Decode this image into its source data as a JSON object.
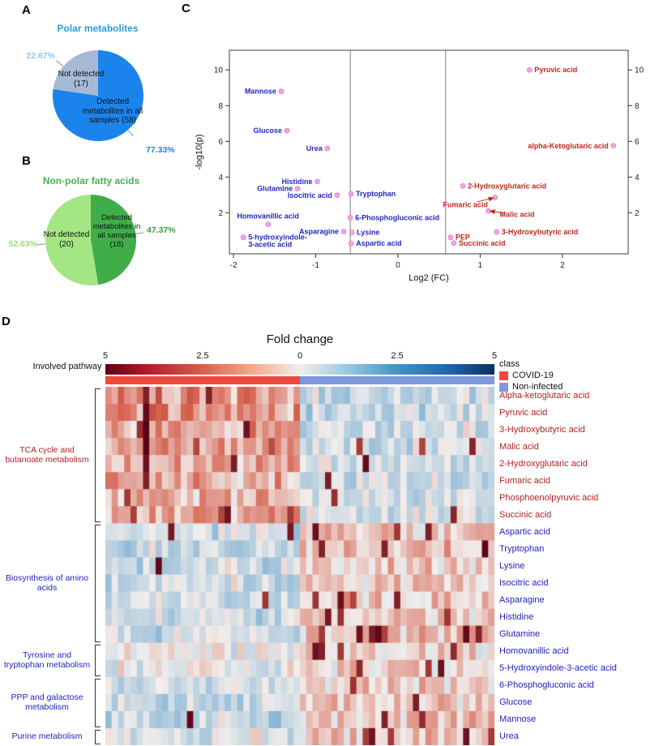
{
  "chart_data": [
    {
      "type": "pie",
      "panel_label": "A",
      "title": "Polar metabolites",
      "title_color": "#2d9be0",
      "slices": [
        {
          "label": "Detected metabolites in all samples (58)",
          "value": 58,
          "pct": 77.33,
          "pct_label": "77.33%",
          "color": "#1b84ec",
          "pct_color": "#1b84ec"
        },
        {
          "label": "Not detected (17)",
          "value": 17,
          "pct": 22.67,
          "pct_label": "22.67%",
          "color": "#a6b9d8",
          "pct_color": "#93c4ea"
        }
      ]
    },
    {
      "type": "pie",
      "panel_label": "B",
      "title": "Non-polar fatty acids",
      "title_color": "#4caf50",
      "slices": [
        {
          "label": "Detected metabolites in all samples (18)",
          "value": 18,
          "pct": 47.37,
          "pct_label": "47.37%",
          "color": "#3fae49",
          "pct_color": "#35a13f"
        },
        {
          "label": "Not detected (20)",
          "value": 20,
          "pct": 52.63,
          "pct_label": "52.63%",
          "color": "#a4e683",
          "pct_color": "#9adf74"
        }
      ]
    },
    {
      "type": "scatter",
      "panel_label": "C",
      "xlabel": "Log2 (FC)",
      "ylabel": "-log10(p)",
      "xlim": [
        -2.05,
        2.8
      ],
      "ylim": [
        -0.3,
        11.1
      ],
      "x_ticks": [
        -2,
        -1,
        0,
        1,
        2
      ],
      "y_ticks": [
        2,
        4,
        6,
        8,
        10
      ],
      "vlines": [
        -0.58,
        0.58
      ],
      "point_color": "#f2a6e0",
      "label_colors": {
        "up": "#c0281c",
        "down": "#2525c4"
      },
      "points": [
        {
          "name": "Pyruvic acid",
          "x": 1.6,
          "y": 10.0,
          "dir": "up",
          "side": "right"
        },
        {
          "name": "Mannose",
          "x": -1.42,
          "y": 8.8,
          "dir": "down",
          "side": "left"
        },
        {
          "name": "Glucose",
          "x": -1.35,
          "y": 6.6,
          "dir": "down",
          "side": "left"
        },
        {
          "name": "Urea",
          "x": -0.86,
          "y": 5.6,
          "dir": "down",
          "side": "left"
        },
        {
          "name": "alpha-Ketoglutaric acid",
          "x": 2.62,
          "y": 5.75,
          "dir": "up",
          "side": "left"
        },
        {
          "name": "Histidine",
          "x": -0.98,
          "y": 3.75,
          "dir": "down",
          "side": "left"
        },
        {
          "name": "Glutamine",
          "x": -1.22,
          "y": 3.35,
          "dir": "down",
          "side": "left"
        },
        {
          "name": "Isocitric acid",
          "x": -0.74,
          "y": 2.98,
          "dir": "down",
          "side": "left"
        },
        {
          "name": "Tryptophan",
          "x": -0.57,
          "y": 3.05,
          "dir": "down",
          "side": "right"
        },
        {
          "name": "2-Hydroxyglutaric acid",
          "x": 0.79,
          "y": 3.5,
          "dir": "up",
          "side": "right"
        },
        {
          "name": "Fumaric acid",
          "x": 1.18,
          "y": 2.85,
          "dir": "up",
          "side": "label",
          "label_at": {
            "x": 0.82,
            "y": 2.45
          }
        },
        {
          "name": "Malic acid",
          "x": 1.1,
          "y": 2.1,
          "dir": "up",
          "side": "label",
          "label_at": {
            "x": 1.45,
            "y": 1.9
          }
        },
        {
          "name": "6-Phosphogluconic acid",
          "x": -0.58,
          "y": 1.72,
          "dir": "down",
          "side": "right"
        },
        {
          "name": "Homovanillic acid",
          "x": -1.58,
          "y": 1.35,
          "dir": "down",
          "side": "above"
        },
        {
          "name": "Asparagine",
          "x": -0.66,
          "y": 0.95,
          "dir": "down",
          "side": "left"
        },
        {
          "name": "Lysine",
          "x": -0.56,
          "y": 0.9,
          "dir": "down",
          "side": "right"
        },
        {
          "name": "5-hydroxyindole-3-acetic acid",
          "x": -1.88,
          "y": 0.62,
          "dir": "down",
          "side": "right",
          "lines": [
            "5-hydroxyindole-",
            "3-acetic acid"
          ]
        },
        {
          "name": "PEP",
          "x": 0.64,
          "y": 0.62,
          "dir": "up",
          "side": "right"
        },
        {
          "name": "3-Hydroxybutyric acid",
          "x": 1.2,
          "y": 0.92,
          "dir": "up",
          "side": "right"
        },
        {
          "name": "Succinic acid",
          "x": 0.68,
          "y": 0.3,
          "dir": "up",
          "side": "right"
        },
        {
          "name": "Aspartic acid",
          "x": -0.57,
          "y": 0.28,
          "dir": "down",
          "side": "right"
        }
      ]
    },
    {
      "type": "heatmap",
      "panel_label": "D",
      "title": "Fold change",
      "colorbar_ticks": [
        "5",
        "2.5",
        "0",
        "2.5",
        "5"
      ],
      "left_axis_label": "Involved pathway",
      "legend": {
        "title": "class",
        "items": [
          {
            "label": "COVID-19",
            "color": "#ed4a3e"
          },
          {
            "label": "Non-infected",
            "color": "#7d98dc"
          }
        ]
      },
      "columns": {
        "covid": 31,
        "control": 31
      },
      "value_range": [
        -5,
        5
      ],
      "seed": 20,
      "row_label_colors": {
        "up": "#b42025",
        "down": "#2121bd"
      },
      "rows": [
        {
          "label": "Alpha-ketoglutaric acid",
          "dir": "up",
          "covid_mean": 1.5,
          "ctrl_mean": -0.8
        },
        {
          "label": "Pyruvic acid",
          "dir": "up",
          "covid_mean": 1.6,
          "ctrl_mean": -0.9
        },
        {
          "label": "3-Hydroxybutyric acid",
          "dir": "up",
          "covid_mean": 1.2,
          "ctrl_mean": -0.6
        },
        {
          "label": "Malic acid",
          "dir": "up",
          "covid_mean": 1.4,
          "ctrl_mean": -0.7
        },
        {
          "label": "2-Hydroxyglutaric acid",
          "dir": "up",
          "covid_mean": 1.2,
          "ctrl_mean": -0.6
        },
        {
          "label": "Fumaric acid",
          "dir": "up",
          "covid_mean": 1.1,
          "ctrl_mean": -0.6
        },
        {
          "label": "Phosphoenolpyruvic acid",
          "dir": "up",
          "covid_mean": 1.0,
          "ctrl_mean": -0.5
        },
        {
          "label": "Succinic acid",
          "dir": "up",
          "covid_mean": 1.0,
          "ctrl_mean": -0.5
        },
        {
          "label": "Aspartic acid",
          "dir": "down",
          "covid_mean": -0.7,
          "ctrl_mean": 0.7
        },
        {
          "label": "Tryptophan",
          "dir": "down",
          "covid_mean": -0.8,
          "ctrl_mean": 0.7
        },
        {
          "label": "Lysine",
          "dir": "down",
          "covid_mean": -0.7,
          "ctrl_mean": 0.6
        },
        {
          "label": "Isocitric acid",
          "dir": "down",
          "covid_mean": -0.6,
          "ctrl_mean": 0.6
        },
        {
          "label": "Asparagine",
          "dir": "down",
          "covid_mean": -0.7,
          "ctrl_mean": 0.6
        },
        {
          "label": "Histidine",
          "dir": "down",
          "covid_mean": -0.8,
          "ctrl_mean": 0.7
        },
        {
          "label": "Glutamine",
          "dir": "down",
          "covid_mean": -0.7,
          "ctrl_mean": 0.7
        },
        {
          "label": "Homovanillic acid",
          "dir": "down",
          "covid_mean": -0.2,
          "ctrl_mean": 0.4
        },
        {
          "label": "5-Hydroxyindole-3-acetic acid",
          "dir": "down",
          "covid_mean": -0.2,
          "ctrl_mean": 0.4
        },
        {
          "label": "6-Phosphogluconic acid",
          "dir": "down",
          "covid_mean": -0.7,
          "ctrl_mean": 0.6
        },
        {
          "label": "Glucose",
          "dir": "down",
          "covid_mean": -0.8,
          "ctrl_mean": 0.7
        },
        {
          "label": "Mannose",
          "dir": "down",
          "covid_mean": -0.9,
          "ctrl_mean": 0.7
        },
        {
          "label": "Urea",
          "dir": "down",
          "covid_mean": -0.4,
          "ctrl_mean": 0.6
        }
      ],
      "groups": [
        {
          "label": "TCA cycle and butanoate metabolism",
          "dir": "up",
          "start": 0,
          "end": 7
        },
        {
          "label": "Biosynthesis of amino acids",
          "dir": "down",
          "start": 8,
          "end": 14
        },
        {
          "label": "Tyrosine and tryptophan metabolism",
          "dir": "down",
          "start": 15,
          "end": 16
        },
        {
          "label": "PPP and galactose metabolism",
          "dir": "down",
          "start": 17,
          "end": 19
        },
        {
          "label": "Purine metabolism",
          "dir": "down",
          "start": 20,
          "end": 20
        }
      ],
      "hot_cells": [
        [
          0,
          6,
          4.2
        ],
        [
          1,
          6,
          4.8
        ],
        [
          2,
          6,
          5
        ],
        [
          3,
          6,
          5
        ],
        [
          4,
          6,
          4.6
        ],
        [
          5,
          6,
          4.2
        ],
        [
          2,
          5,
          3.8
        ],
        [
          6,
          3,
          3.5
        ],
        [
          7,
          4,
          3.4
        ],
        [
          8,
          46,
          3.6
        ],
        [
          9,
          44,
          4.2
        ],
        [
          12,
          25,
          3.6
        ],
        [
          14,
          57,
          4.8
        ],
        [
          15,
          33,
          4.6
        ],
        [
          15,
          34,
          4.2
        ],
        [
          16,
          40,
          4.0
        ],
        [
          20,
          45,
          3.5
        ],
        [
          20,
          57,
          4.6
        ]
      ]
    }
  ]
}
